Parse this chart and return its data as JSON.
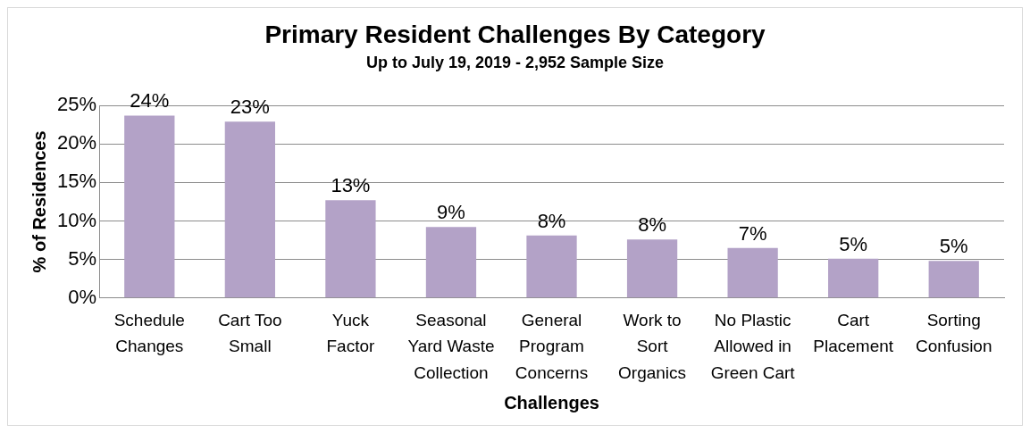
{
  "chart_data": {
    "type": "bar",
    "title": "Primary Resident Challenges By Category",
    "subtitle": "Up to July 19, 2019 - 2,952 Sample Size",
    "xlabel": "Challenges",
    "ylabel": "% of Residences",
    "categories": [
      "Schedule Changes",
      "Cart Too Small",
      "Yuck Factor",
      "Seasonal Yard Waste Collection",
      "General Program Concerns",
      "Work to Sort Organics",
      "No Plastic Allowed in Green Cart",
      "Cart Placement",
      "Sorting Confusion"
    ],
    "values": [
      23.7,
      22.9,
      12.7,
      9.2,
      8.1,
      7.6,
      6.5,
      5.1,
      4.8
    ],
    "value_labels": [
      "24%",
      "23%",
      "13%",
      "9%",
      "8%",
      "8%",
      "7%",
      "5%",
      "5%"
    ],
    "color": "#b3a2c7",
    "ylim": [
      0,
      25
    ],
    "yticks": [
      {
        "value": 0,
        "label": "0%"
      },
      {
        "value": 5,
        "label": "5%"
      },
      {
        "value": 10,
        "label": "10%"
      },
      {
        "value": 15,
        "label": "15%"
      },
      {
        "value": 20,
        "label": "20%"
      },
      {
        "value": 25,
        "label": "25%"
      }
    ],
    "grid": "y",
    "legend": false
  }
}
